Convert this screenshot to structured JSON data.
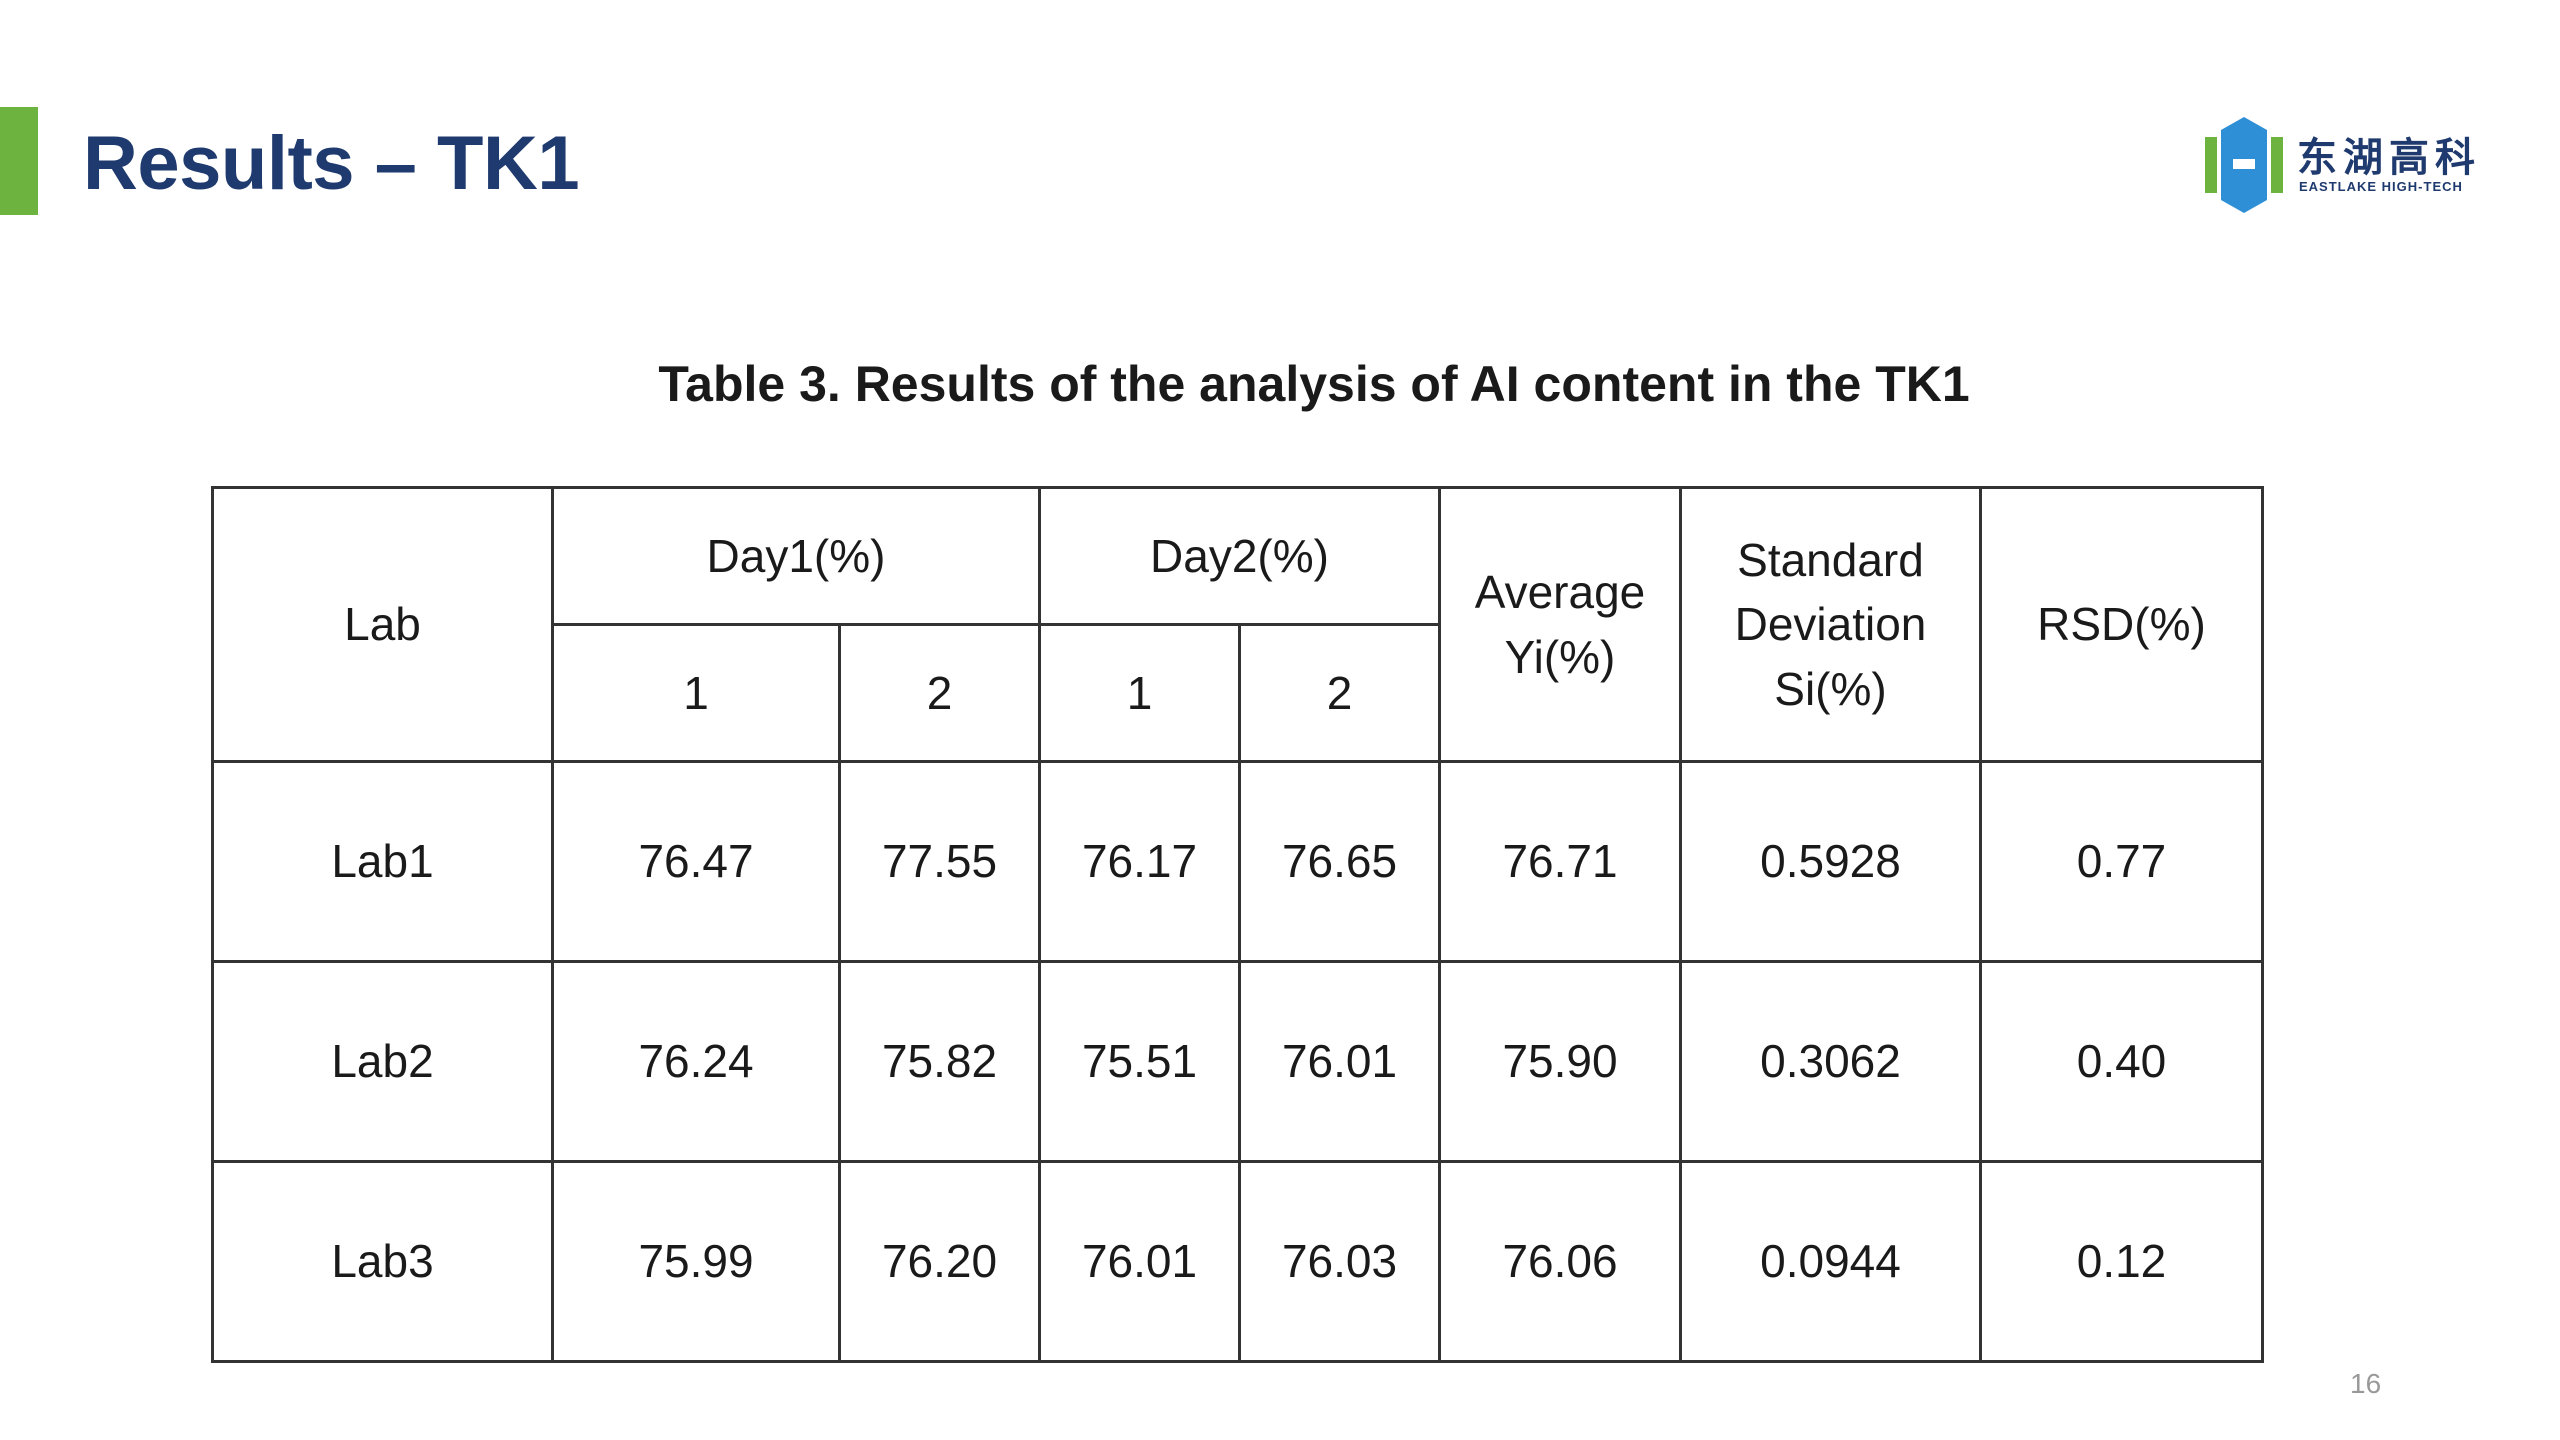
{
  "slide": {
    "title": "Results – TK1",
    "page_number": "16",
    "accent_color": "#6cb33f",
    "title_color": "#1f3a6e"
  },
  "logo": {
    "name_cn": "东湖高科",
    "name_en": "EASTLAKE HIGH-TECH",
    "colors": [
      "#6cb33f",
      "#2f8fd6",
      "#1f3a6e"
    ]
  },
  "table": {
    "caption": "Table 3. Results of the analysis of AI content in the TK1",
    "headers": {
      "lab": "Lab",
      "day1": "Day1(%)",
      "day2": "Day2(%)",
      "average": [
        "Average",
        "Yi(%)"
      ],
      "std": [
        "Standard",
        "Deviation",
        "Si(%)"
      ],
      "rsd": "RSD(%)",
      "sub": [
        "1",
        "2",
        "1",
        "2"
      ]
    },
    "rows": [
      [
        "Lab1",
        "76.47",
        "77.55",
        "76.17",
        "76.65",
        "76.71",
        "0.5928",
        "0.77"
      ],
      [
        "Lab2",
        "76.24",
        "75.82",
        "75.51",
        "76.01",
        "75.90",
        "0.3062",
        "0.40"
      ],
      [
        "Lab3",
        "75.99",
        "76.20",
        "76.01",
        "76.03",
        "76.06",
        "0.0944",
        "0.12"
      ]
    ]
  }
}
